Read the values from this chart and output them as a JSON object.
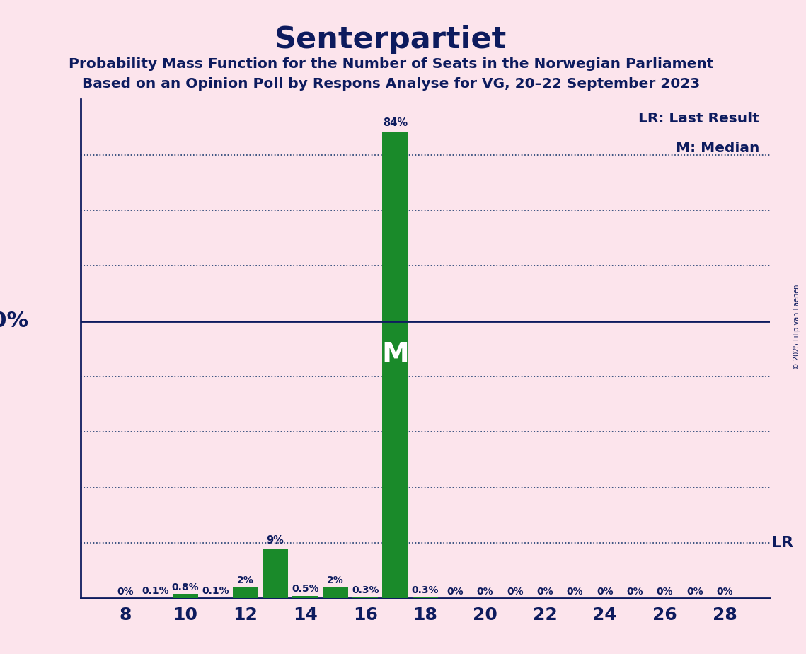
{
  "title": "Senterpartiet",
  "subtitle1": "Probability Mass Function for the Number of Seats in the Norwegian Parliament",
  "subtitle2": "Based on an Opinion Poll by Respons Analyse for VG, 20–22 September 2023",
  "copyright": "© 2025 Filip van Laenen",
  "legend_lr": "LR: Last Result",
  "legend_m": "M: Median",
  "seats": [
    8,
    9,
    10,
    11,
    12,
    13,
    14,
    15,
    16,
    17,
    18,
    19,
    20,
    21,
    22,
    23,
    24,
    25,
    26,
    27,
    28
  ],
  "probabilities": [
    0.0,
    0.1,
    0.8,
    0.1,
    2.0,
    9.0,
    0.5,
    2.0,
    0.3,
    84.0,
    0.3,
    0.0,
    0.0,
    0.0,
    0.0,
    0.0,
    0.0,
    0.0,
    0.0,
    0.0,
    0.0
  ],
  "labels": [
    "0%",
    "0.1%",
    "0.8%",
    "0.1%",
    "2%",
    "9%",
    "0.5%",
    "2%",
    "0.3%",
    "84%",
    "0.3%",
    "0%",
    "0%",
    "0%",
    "0%",
    "0%",
    "0%",
    "0%",
    "0%",
    "0%",
    "0%"
  ],
  "median_seat": 17,
  "last_result_y": 10,
  "bar_color": "#1a8a2a",
  "fifty_pct_line_color": "#0d1b5e",
  "dotted_line_color": "#1a3a6e",
  "background_color": "#fce4ec",
  "title_color": "#0d1b5e",
  "label_color": "#0d1b5e",
  "axis_color": "#0d1b5e",
  "ylim": [
    0,
    90
  ],
  "dotted_y_lines": [
    10,
    20,
    30,
    40,
    60,
    70,
    80
  ],
  "xlabel_ticks": [
    8,
    10,
    12,
    14,
    16,
    18,
    20,
    22,
    24,
    26,
    28
  ],
  "xmin": 6.5,
  "xmax": 29.5
}
